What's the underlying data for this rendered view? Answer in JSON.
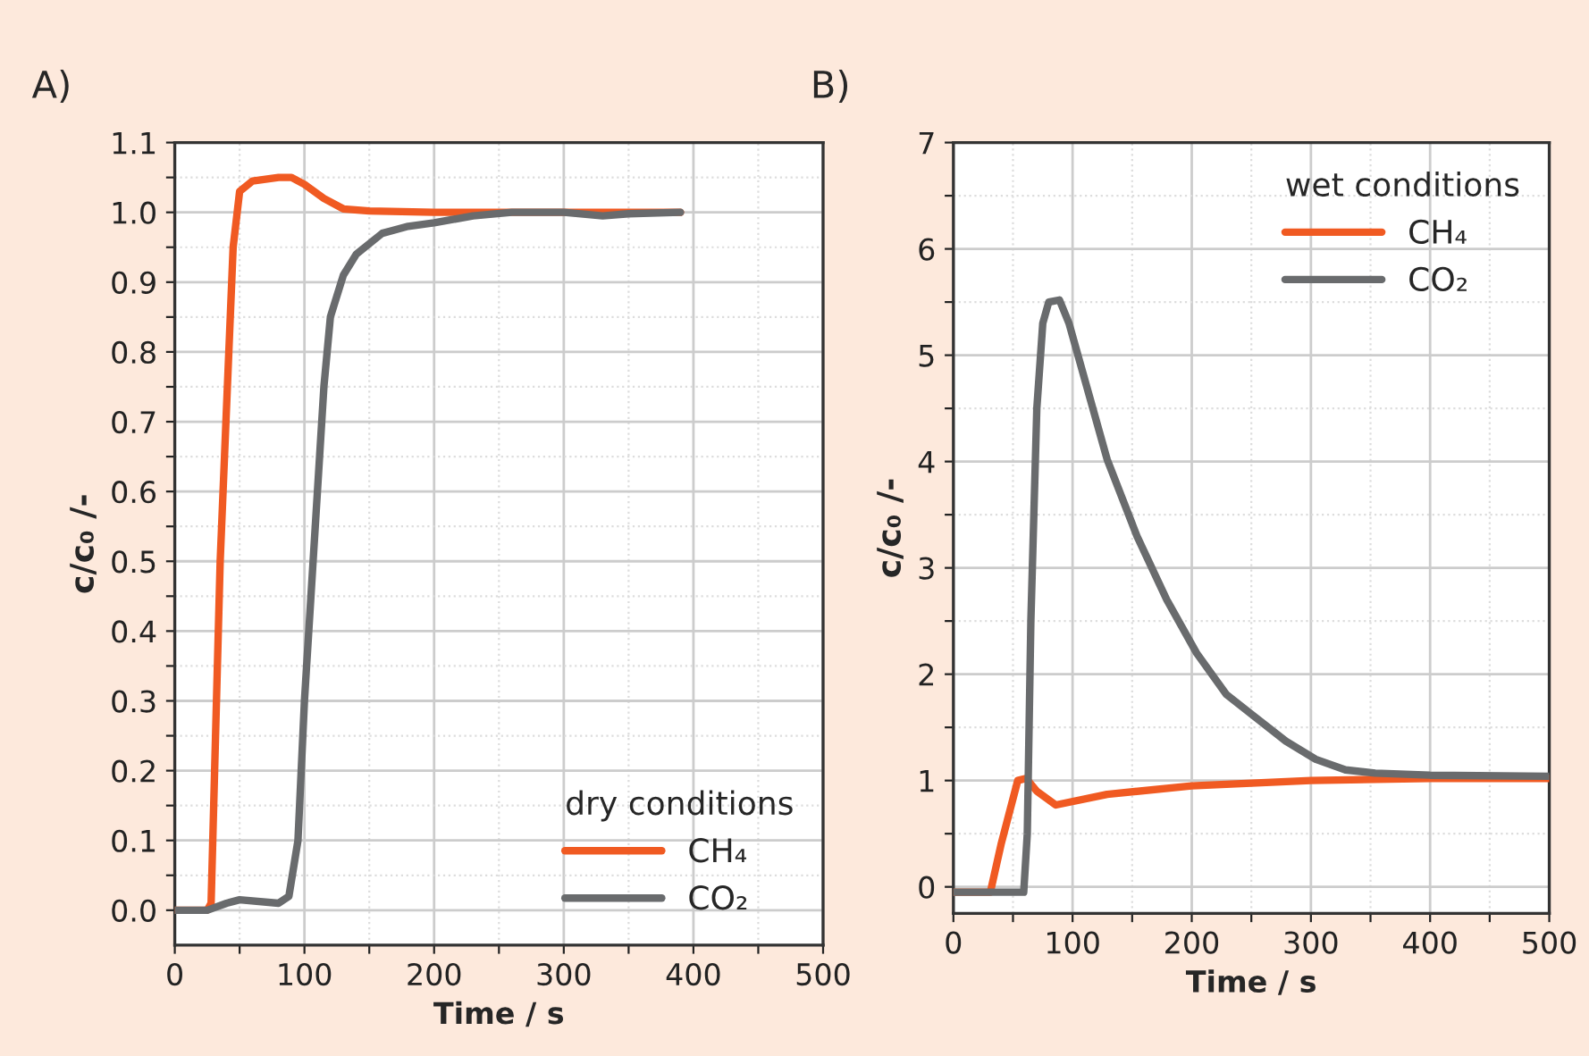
{
  "chart_data": [
    {
      "type": "line",
      "title": "A)",
      "xlabel": "Time / s",
      "ylabel": "c/c₀ /-",
      "legend_title": "dry conditions",
      "legend": "bottom right",
      "grid": true,
      "line_style": "solid",
      "xlim": [
        0,
        500
      ],
      "ylim": [
        -0.05,
        1.1
      ],
      "xticks": [
        0,
        {
          "value": 50,
          "label": null
        },
        100,
        {
          "value": 150,
          "label": null
        },
        200,
        {
          "value": 250,
          "label": null
        },
        300,
        {
          "value": 350,
          "label": null
        },
        400,
        {
          "value": 450,
          "label": null
        },
        500
      ],
      "yticks": [
        {
          "value": 0,
          "label": "0.0"
        },
        {
          "value": 0.05,
          "label": null
        },
        {
          "value": 0.1,
          "label": "0.1"
        },
        {
          "value": 0.15,
          "label": null
        },
        {
          "value": 0.2,
          "label": "0.2"
        },
        {
          "value": 0.25,
          "label": null
        },
        {
          "value": 0.3,
          "label": "0.3"
        },
        {
          "value": 0.35,
          "label": null
        },
        {
          "value": 0.4,
          "label": "0.4"
        },
        {
          "value": 0.45,
          "label": null
        },
        {
          "value": 0.5,
          "label": "0.5"
        },
        {
          "value": 0.55,
          "label": null
        },
        {
          "value": 0.6,
          "label": "0.6"
        },
        {
          "value": 0.65,
          "label": null
        },
        {
          "value": 0.7,
          "label": "0.7"
        },
        {
          "value": 0.75,
          "label": null
        },
        {
          "value": 0.8,
          "label": "0.8"
        },
        {
          "value": 0.85,
          "label": null
        },
        {
          "value": 0.9,
          "label": "0.9"
        },
        {
          "value": 0.95,
          "label": null
        },
        {
          "value": 1.0,
          "label": "1.0"
        },
        {
          "value": 1.05,
          "label": null
        },
        {
          "value": 1.1,
          "label": "1.1"
        }
      ],
      "series": [
        {
          "name": "CH₄",
          "color": "#f05a22",
          "x": [
            0,
            25,
            28,
            35,
            45,
            50,
            60,
            80,
            90,
            100,
            115,
            130,
            150,
            200,
            390
          ],
          "values": [
            0,
            0,
            0.01,
            0.5,
            0.95,
            1.03,
            1.045,
            1.05,
            1.05,
            1.04,
            1.02,
            1.005,
            1.002,
            1.0,
            1.0
          ]
        },
        {
          "name": "CO₂",
          "color": "#696b6d",
          "x": [
            0,
            25,
            40,
            50,
            80,
            88,
            95,
            100,
            110,
            115,
            120,
            130,
            140,
            160,
            180,
            200,
            230,
            260,
            300,
            330,
            350,
            390
          ],
          "values": [
            0,
            0,
            0.01,
            0.015,
            0.01,
            0.02,
            0.1,
            0.3,
            0.6,
            0.75,
            0.85,
            0.91,
            0.94,
            0.97,
            0.98,
            0.985,
            0.995,
            1.0,
            1.0,
            0.995,
            0.998,
            1.0
          ]
        }
      ]
    },
    {
      "type": "line",
      "title": "B)",
      "xlabel": "Time / s",
      "ylabel": "c/c₀ /-",
      "legend_title": "wet conditions",
      "legend": "top right",
      "grid": true,
      "line_style": "solid",
      "xlim": [
        0,
        500
      ],
      "ylim": [
        -0.25,
        7
      ],
      "xticks": [
        0,
        {
          "value": 50,
          "label": null
        },
        100,
        {
          "value": 150,
          "label": null
        },
        200,
        {
          "value": 250,
          "label": null
        },
        300,
        {
          "value": 350,
          "label": null
        },
        400,
        {
          "value": 450,
          "label": null
        },
        500
      ],
      "yticks": [
        0,
        {
          "value": 0.5,
          "label": null
        },
        1,
        {
          "value": 1.5,
          "label": null
        },
        2,
        {
          "value": 2.5,
          "label": null
        },
        3,
        {
          "value": 3.5,
          "label": null
        },
        4,
        {
          "value": 4.5,
          "label": null
        },
        5,
        {
          "value": 5.5,
          "label": null
        },
        6,
        {
          "value": 6.5,
          "label": null
        },
        7
      ],
      "series": [
        {
          "name": "CH₄",
          "color": "#f05a22",
          "x": [
            0,
            31,
            40,
            54,
            61,
            70,
            86,
            129,
            200,
            300,
            400,
            500
          ],
          "values": [
            -0.05,
            -0.05,
            0.4,
            1.0,
            1.02,
            0.9,
            0.77,
            0.87,
            0.95,
            1.0,
            1.02,
            1.02
          ]
        },
        {
          "name": "CO₂",
          "color": "#696b6d",
          "x": [
            0,
            59,
            62,
            65,
            70,
            75,
            80,
            89,
            97,
            129,
            154,
            179,
            204,
            229,
            254,
            279,
            304,
            329,
            354,
            400,
            500
          ],
          "values": [
            -0.05,
            -0.05,
            0.5,
            2.5,
            4.5,
            5.3,
            5.5,
            5.52,
            5.3,
            4.02,
            3.3,
            2.7,
            2.2,
            1.81,
            1.59,
            1.37,
            1.2,
            1.1,
            1.07,
            1.05,
            1.04
          ]
        }
      ]
    }
  ]
}
